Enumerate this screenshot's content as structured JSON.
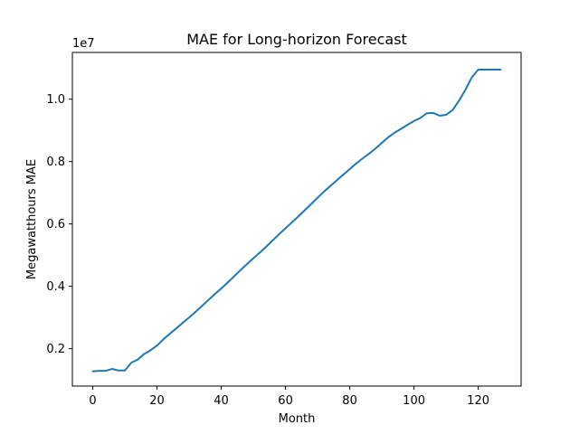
{
  "chart_data": {
    "type": "line",
    "title": "MAE for Long-horizon Forecast",
    "xlabel": "Month",
    "ylabel": "Megawatthours MAE",
    "offset_label": "1e7",
    "y_scale_factor": 10000000,
    "xlim": [
      -6.35,
      133.35
    ],
    "ylim": [
      800000,
      11500000
    ],
    "x_ticks": [
      0,
      20,
      40,
      60,
      80,
      100,
      120
    ],
    "x_tick_labels": [
      "0",
      "20",
      "40",
      "60",
      "80",
      "100",
      "120"
    ],
    "y_ticks": [
      2000000,
      4000000,
      6000000,
      8000000,
      10000000
    ],
    "y_tick_labels": [
      "0.2",
      "0.4",
      "0.6",
      "0.8",
      "1.0"
    ],
    "grid": false,
    "legend": "none",
    "colors": {
      "line": "#1f77b4",
      "axes": "#000000"
    },
    "series": [
      {
        "x": [
          0,
          2,
          4,
          6,
          8,
          10,
          12,
          14,
          16,
          18,
          20,
          22,
          24,
          26,
          28,
          30,
          32,
          34,
          36,
          38,
          40,
          42,
          44,
          46,
          48,
          50,
          52,
          54,
          56,
          58,
          60,
          62,
          64,
          66,
          68,
          70,
          72,
          74,
          76,
          78,
          80,
          82,
          84,
          86,
          88,
          90,
          92,
          94,
          96,
          98,
          100,
          102,
          104,
          106,
          108,
          110,
          112,
          114,
          116,
          118,
          120,
          122,
          124,
          126,
          127
        ],
        "y": [
          1270000,
          1290000,
          1290000,
          1350000,
          1300000,
          1300000,
          1550000,
          1650000,
          1830000,
          1950000,
          2100000,
          2300000,
          2480000,
          2650000,
          2830000,
          3000000,
          3180000,
          3370000,
          3560000,
          3750000,
          3930000,
          4120000,
          4320000,
          4520000,
          4710000,
          4900000,
          5080000,
          5270000,
          5470000,
          5670000,
          5860000,
          6050000,
          6240000,
          6440000,
          6640000,
          6840000,
          7040000,
          7220000,
          7400000,
          7580000,
          7760000,
          7940000,
          8100000,
          8250000,
          8420000,
          8600000,
          8780000,
          8930000,
          9050000,
          9180000,
          9300000,
          9400000,
          9550000,
          9560000,
          9470000,
          9500000,
          9650000,
          9950000,
          10300000,
          10700000,
          10950000,
          10950000,
          10950000,
          10950000,
          10950000
        ]
      }
    ]
  }
}
